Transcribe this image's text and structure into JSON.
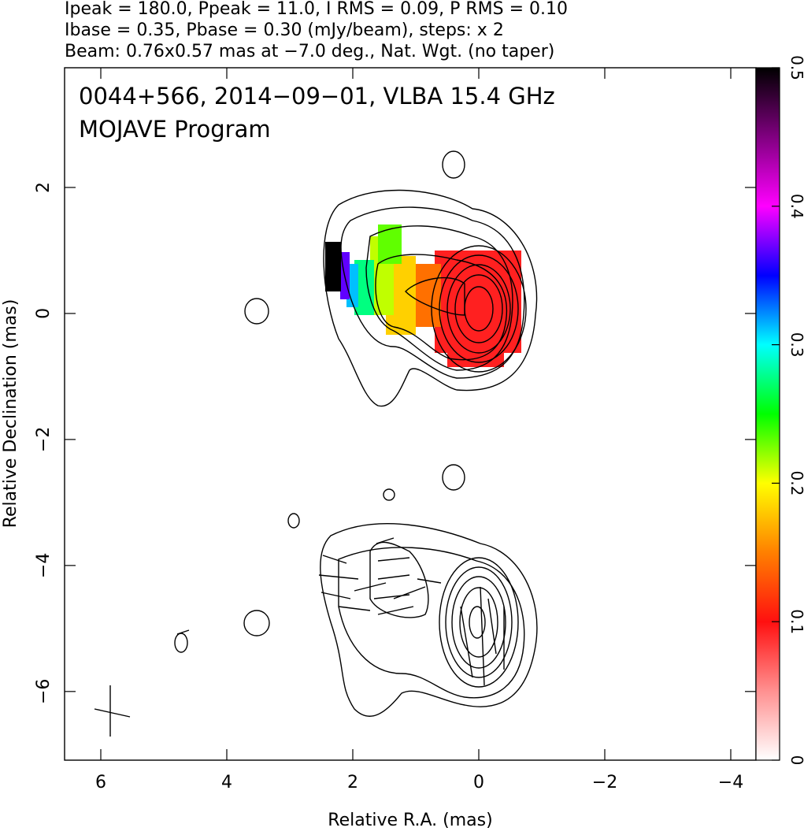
{
  "chart_data": {
    "type": "contour",
    "header": [
      "Ipeak = 180.0, Ppeak = 11.0, I RMS = 0.09, P RMS = 0.10",
      "Ibase = 0.35, Pbase = 0.30 (mJy/beam), steps: x 2",
      "Beam: 0.76x0.57 mas at −7.0 deg., Nat. Wgt. (no taper)"
    ],
    "title": "0044+566, 2014−09−01, VLBA 15.4 GHz",
    "subtitle": "MOJAVE Program",
    "xlabel": "Relative R.A. (mas)",
    "ylabel": "Relative Declination (mas)",
    "xlim": [
      6.575,
      -4.4
    ],
    "xticks": [
      6,
      4,
      2,
      0,
      {
        "value": -2,
        "label": "−2"
      },
      {
        "value": -4,
        "label": "−4"
      }
    ],
    "ylim": [
      -7.09,
      3.9
    ],
    "yticks": [
      {
        "value": -6,
        "label": "−6"
      },
      {
        "value": -4,
        "label": "−4"
      },
      {
        "value": -2,
        "label": "−2"
      },
      0,
      2
    ],
    "colorbar": {
      "lim": [
        0,
        0.5
      ],
      "ticks": [
        0,
        0.1,
        0.2,
        0.3,
        0.4,
        0.5
      ],
      "colors": [
        "#ffffff",
        "#ff9090",
        "#ff1010",
        "#ff8000",
        "#ffff00",
        "#00ff00",
        "#00ffff",
        "#0000ff",
        "#ff00ff",
        "#800080",
        "#000000"
      ]
    }
  }
}
